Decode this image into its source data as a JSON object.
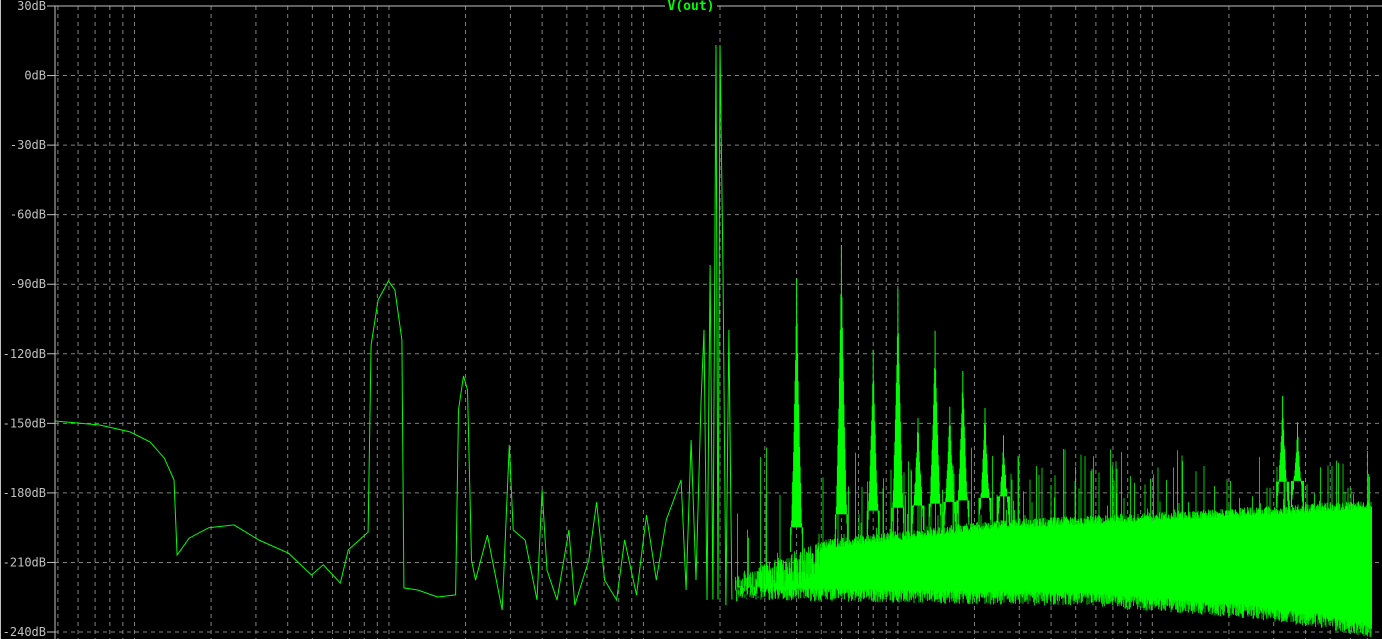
{
  "chart_data": {
    "type": "line",
    "title": "V(out)",
    "xscale": "log",
    "xlim": [
      48.7,
      7300000
    ],
    "ylim": [
      -240,
      30
    ],
    "yticks": [
      30,
      0,
      -30,
      -60,
      -90,
      -120,
      -150,
      -180,
      -210,
      -240
    ],
    "ytick_labels": [
      "30dB",
      "0dB",
      "-30dB",
      "-60dB",
      "-90dB",
      "-120dB",
      "-150dB",
      "-180dB",
      "-210dB",
      "-240dB"
    ],
    "grid": true,
    "colors": {
      "background": "#000000",
      "trace": "#00ff00",
      "grid": "#808080",
      "axis": "#c0c0c0",
      "labels": "#c0c0c0"
    },
    "trace_points": [
      [
        48.7,
        -149
      ],
      [
        73,
        -150.7
      ],
      [
        96,
        -153.7
      ],
      [
        115,
        -158
      ],
      [
        131,
        -165
      ],
      [
        143,
        -174.4
      ],
      [
        147,
        -206.8
      ],
      [
        164,
        -199.5
      ],
      [
        196,
        -195
      ],
      [
        246,
        -193.8
      ],
      [
        308,
        -200.3
      ],
      [
        403,
        -206
      ],
      [
        496,
        -215.4
      ],
      [
        552,
        -211
      ],
      [
        644,
        -218.9
      ],
      [
        692,
        -204.6
      ],
      [
        828,
        -196.9
      ],
      [
        851,
        -116.2
      ],
      [
        906,
        -96.8
      ],
      [
        995,
        -88.6
      ],
      [
        1055,
        -92.5
      ],
      [
        1124,
        -114
      ],
      [
        1145,
        -221
      ],
      [
        1298,
        -221.9
      ],
      [
        1553,
        -224.9
      ],
      [
        1827,
        -224
      ],
      [
        1877,
        -144.2
      ],
      [
        1963,
        -129.6
      ],
      [
        2036,
        -135.6
      ],
      [
        2110,
        -209
      ],
      [
        2188,
        -217.6
      ],
      [
        2437,
        -198.2
      ],
      [
        2787,
        -230.5
      ],
      [
        2970,
        -159.3
      ],
      [
        3077,
        -196
      ],
      [
        3428,
        -200.3
      ],
      [
        3819,
        -226.2
      ],
      [
        3999,
        -178.8
      ],
      [
        4180,
        -213.3
      ],
      [
        4573,
        -226.2
      ],
      [
        5093,
        -196
      ],
      [
        5375,
        -228.4
      ],
      [
        6099,
        -209
      ],
      [
        6548,
        -184
      ],
      [
        7041,
        -217.6
      ],
      [
        7847,
        -226.2
      ],
      [
        8433,
        -200.3
      ],
      [
        9395,
        -224
      ],
      [
        10280,
        -189.5
      ],
      [
        11240,
        -217.6
      ],
      [
        12300,
        -191.6
      ],
      [
        14060,
        -174.4
      ],
      [
        14720,
        -221.9
      ],
      [
        15400,
        -157.2
      ],
      [
        16100,
        -217.6
      ],
      [
        16860,
        -140
      ],
      [
        17300,
        -109.7
      ],
      [
        17780,
        -226.2
      ],
      [
        18280,
        -81.7
      ],
      [
        18750,
        -226
      ],
      [
        19280,
        13.2
      ],
      [
        19630,
        -226
      ],
      [
        20000,
        13.2
      ],
      [
        20540,
        -83.9
      ],
      [
        21090,
        -228.4
      ],
      [
        21680,
        -109.7
      ],
      [
        22280,
        -226
      ]
    ],
    "harmonic_peaks": [
      [
        40000,
        -84.7
      ],
      [
        60000,
        -71
      ],
      [
        80000,
        -117.5
      ],
      [
        100000,
        -91
      ],
      [
        120000,
        -144
      ],
      [
        140000,
        -107.6
      ],
      [
        160000,
        -140
      ],
      [
        180000,
        -123.5
      ],
      [
        220000,
        -140.8
      ],
      [
        260000,
        -155
      ],
      [
        3250000,
        -138
      ],
      [
        3720000,
        -148.5
      ]
    ],
    "noise_floor": [
      [
        23000,
        -226
      ],
      [
        97300,
        -227.5
      ],
      [
        589000,
        -229
      ],
      [
        2265000,
        -234
      ],
      [
        4660000,
        -238.3
      ],
      [
        7300000,
        -242.6
      ]
    ],
    "noise_band_top": [
      [
        23000,
        -215
      ],
      [
        51900,
        -200
      ],
      [
        239000,
        -191.7
      ],
      [
        1446000,
        -187.4
      ],
      [
        7300000,
        -183
      ]
    ],
    "noise_spike_max": -160
  }
}
